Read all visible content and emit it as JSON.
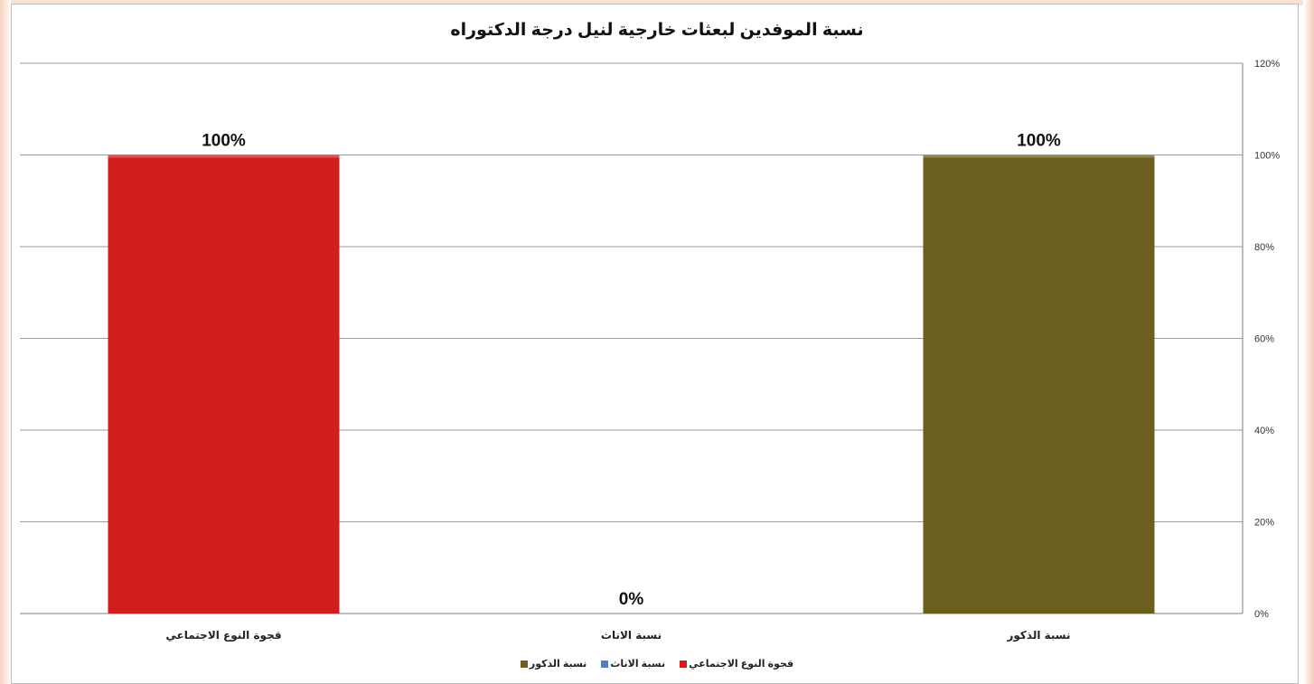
{
  "chart_data": {
    "type": "bar",
    "title": "نسبة الموفدين لبعثات خارجية لنيل درجة الدكتوراه",
    "categories": [
      "قجوة النوع الاجتماعي",
      "نسبة الاناث",
      "نسبة الذكور"
    ],
    "values": [
      100,
      0,
      100
    ],
    "data_labels": [
      "100%",
      "0%",
      "100%"
    ],
    "bar_colors": [
      "#d21d1d",
      "#4f81bd",
      "#6b5e1e"
    ],
    "ylim": [
      0,
      120
    ],
    "y_ticks": [
      "0%",
      "20%",
      "40%",
      "60%",
      "80%",
      "100%",
      "120%"
    ],
    "y_axis_position": "right",
    "grid": true,
    "xlabel": "",
    "ylabel": "",
    "legend": {
      "placement": "bottom",
      "entries": [
        {
          "label": "قجوة النوع الاجتماعي",
          "color": "#d21d1d"
        },
        {
          "label": "نسبة الاناث",
          "color": "#4f81bd"
        },
        {
          "label": "نسبة الذكور",
          "color": "#6b5e1e"
        }
      ]
    }
  }
}
